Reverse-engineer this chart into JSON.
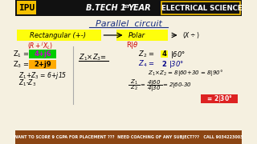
{
  "bg_color": "#f5f0e0",
  "header_text_left": "IPU",
  "header_text_mid": "B.TECH 1ST YEAR",
  "header_text_right": "ELECTRICAL SCIENCE",
  "title": "Parallel  circuit",
  "rect_label": "Rectangular (+-)",
  "polar_label": "Polar",
  "footer": "WANT TO SCORE 9 CGPA FOR PLACEMENT ???  NEED COACHING OF ANY SUBJECT???   CALL 9034223003"
}
